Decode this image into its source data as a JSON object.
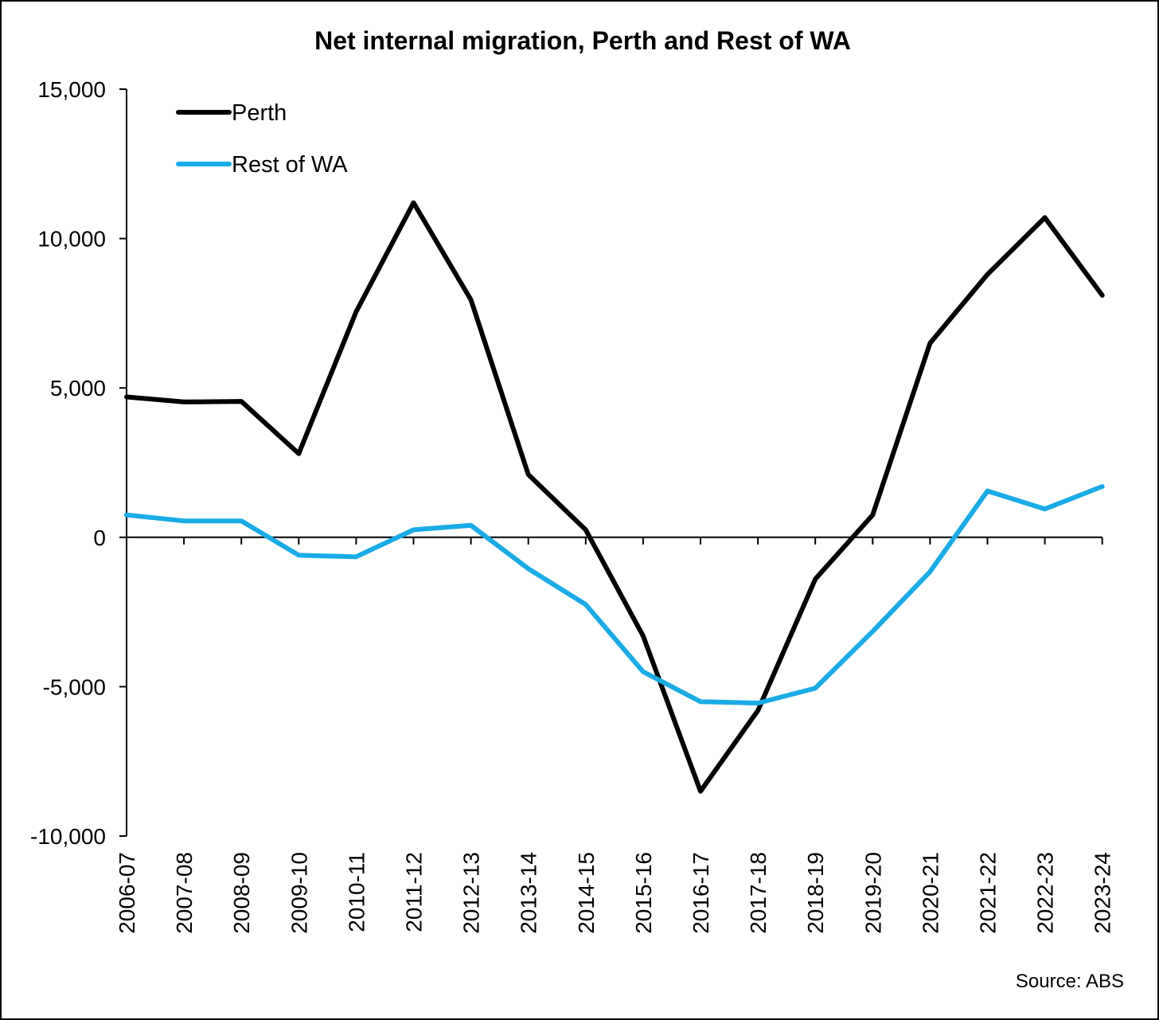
{
  "chart_data": {
    "type": "line",
    "title": "Net internal migration, Perth and Rest of WA",
    "source": "Source: ABS",
    "xlabel": "",
    "ylabel": "",
    "ylim": [
      -10000,
      15000
    ],
    "yticks": [
      -10000,
      -5000,
      0,
      5000,
      10000,
      15000
    ],
    "ytick_labels": [
      "-10,000",
      "-5,000",
      "0",
      "5,000",
      "10,000",
      "15,000"
    ],
    "grid": false,
    "legend_position": "top-left",
    "categories": [
      "2006-07",
      "2007-08",
      "2008-09",
      "2009-10",
      "2010-11",
      "2011-12",
      "2012-13",
      "2013-14",
      "2014-15",
      "2015-16",
      "2016-17",
      "2017-18",
      "2018-19",
      "2019-20",
      "2020-21",
      "2021-22",
      "2022-23",
      "2023-24"
    ],
    "series": [
      {
        "name": "Perth",
        "color": "#000000",
        "values": [
          4700,
          4530,
          4550,
          2800,
          7550,
          11200,
          7950,
          2100,
          250,
          -3300,
          -8500,
          -5800,
          -1400,
          750,
          6500,
          8800,
          10700,
          8100
        ]
      },
      {
        "name": "Rest of WA",
        "color": "#1aabe6",
        "values": [
          750,
          550,
          550,
          -600,
          -650,
          250,
          400,
          -1050,
          -2250,
          -4500,
          -5500,
          -5550,
          -5050,
          -3150,
          -1150,
          1550,
          950,
          1700
        ]
      }
    ]
  }
}
